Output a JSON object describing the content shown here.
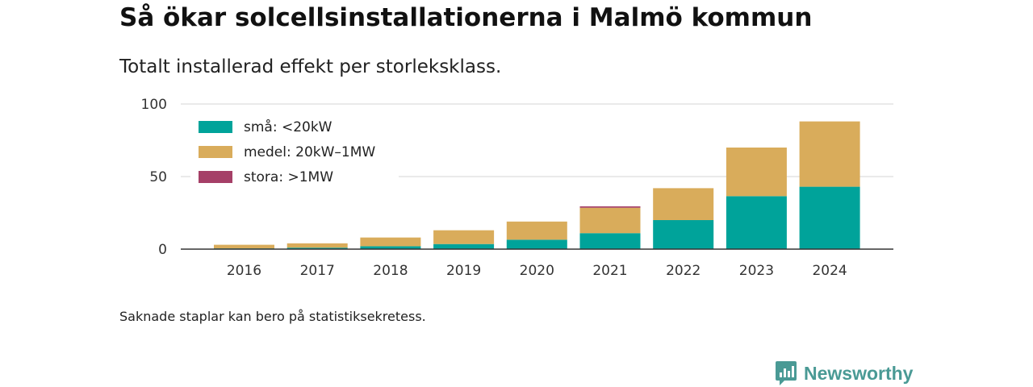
{
  "header": {
    "title": "Så ökar solcellsinstallationerna i Malmö kommun",
    "subtitle": "Totalt installerad effekt per storleksklass."
  },
  "footer": {
    "note": "Saknade staplar kan bero på statistiksekretess.",
    "brand_name": "Newsworthy",
    "brand_icon": "newsworthy-logo-icon"
  },
  "chart_data": {
    "type": "bar",
    "stacked": true,
    "title": "Så ökar solcellsinstallationerna i Malmö kommun",
    "subtitle": "Totalt installerad effekt per storleksklass.",
    "xlabel": "",
    "ylabel": "",
    "categories": [
      "2016",
      "2017",
      "2018",
      "2019",
      "2020",
      "2021",
      "2022",
      "2023",
      "2024"
    ],
    "series": [
      {
        "name": "små: <20kW",
        "color": "#00a39a",
        "values": [
          0.5,
          1,
          2,
          3.5,
          6.5,
          11,
          20,
          36.5,
          43
        ]
      },
      {
        "name": "medel: 20kW–1MW",
        "color": "#d9ac5b",
        "values": [
          2.5,
          3,
          6,
          9.5,
          12.5,
          17.5,
          22,
          33.5,
          45
        ]
      },
      {
        "name": "stora: >1MW",
        "color": "#a53f67",
        "values": [
          0,
          0,
          0,
          0,
          0,
          1,
          0,
          0,
          0
        ]
      }
    ],
    "ylim": [
      0,
      100
    ],
    "yticks": [
      0,
      50,
      100
    ],
    "grid": true,
    "legend_position": "top-left"
  }
}
